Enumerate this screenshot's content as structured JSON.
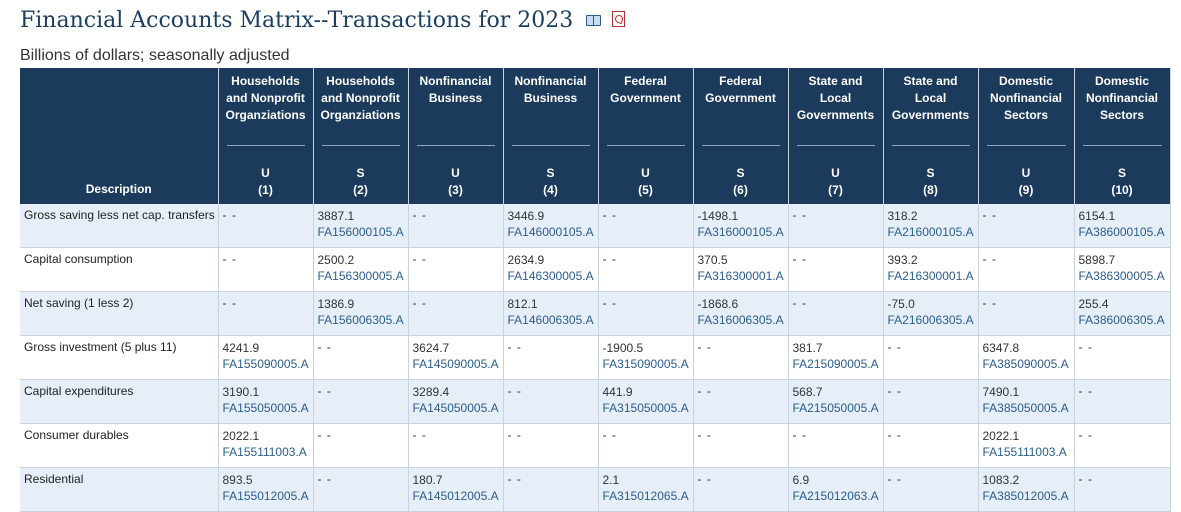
{
  "title": "Financial Accounts Matrix--Transactions for 2023",
  "subtitle": "Billions of dollars; seasonally adjusted",
  "icons": [
    "book-icon",
    "pdf-icon"
  ],
  "colors": {
    "header_bg": "#1b3a5c",
    "row_alt": "#e6eef7",
    "link": "#2a5d8f",
    "title": "#1b3f63"
  },
  "columns": [
    {
      "label": "Description"
    },
    {
      "name": "Households and Nonprofit Organziations",
      "type": "U",
      "num": "(1)"
    },
    {
      "name": "Households and Nonprofit Organziations",
      "type": "S",
      "num": "(2)"
    },
    {
      "name": "Nonfinancial Business",
      "type": "U",
      "num": "(3)"
    },
    {
      "name": "Nonfinancial Business",
      "type": "S",
      "num": "(4)"
    },
    {
      "name": "Federal Government",
      "type": "U",
      "num": "(5)"
    },
    {
      "name": "Federal Government",
      "type": "S",
      "num": "(6)"
    },
    {
      "name": "State and Local Governments",
      "type": "U",
      "num": "(7)"
    },
    {
      "name": "State and Local Governments",
      "type": "S",
      "num": "(8)"
    },
    {
      "name": "Domestic Nonfinancial Sectors",
      "type": "U",
      "num": "(9)"
    },
    {
      "name": "Domestic Nonfinancial Sectors",
      "type": "S",
      "num": "(10)"
    }
  ],
  "rows": [
    {
      "description": "Gross saving less net cap. transfers",
      "cells": [
        null,
        {
          "value": "3887.1",
          "code": "FA156000105.A"
        },
        null,
        {
          "value": "3446.9",
          "code": "FA146000105.A"
        },
        null,
        {
          "value": "-1498.1",
          "code": "FA316000105.A"
        },
        null,
        {
          "value": "318.2",
          "code": "FA216000105.A"
        },
        null,
        {
          "value": "6154.1",
          "code": "FA386000105.A"
        }
      ]
    },
    {
      "description": "Capital consumption",
      "cells": [
        null,
        {
          "value": "2500.2",
          "code": "FA156300005.A"
        },
        null,
        {
          "value": "2634.9",
          "code": "FA146300005.A"
        },
        null,
        {
          "value": "370.5",
          "code": "FA316300001.A"
        },
        null,
        {
          "value": "393.2",
          "code": "FA216300001.A"
        },
        null,
        {
          "value": "5898.7",
          "code": "FA386300005.A"
        }
      ]
    },
    {
      "description": "Net saving (1 less 2)",
      "cells": [
        null,
        {
          "value": "1386.9",
          "code": "FA156006305.A"
        },
        null,
        {
          "value": "812.1",
          "code": "FA146006305.A"
        },
        null,
        {
          "value": "-1868.6",
          "code": "FA316006305.A"
        },
        null,
        {
          "value": "-75.0",
          "code": "FA216006305.A"
        },
        null,
        {
          "value": "255.4",
          "code": "FA386006305.A"
        }
      ]
    },
    {
      "description": "Gross investment (5 plus 11)",
      "cells": [
        {
          "value": "4241.9",
          "code": "FA155090005.A"
        },
        null,
        {
          "value": "3624.7",
          "code": "FA145090005.A"
        },
        null,
        {
          "value": "-1900.5",
          "code": "FA315090005.A"
        },
        null,
        {
          "value": "381.7",
          "code": "FA215090005.A"
        },
        null,
        {
          "value": "6347.8",
          "code": "FA385090005.A"
        },
        null
      ]
    },
    {
      "description": "Capital expenditures",
      "cells": [
        {
          "value": "3190.1",
          "code": "FA155050005.A"
        },
        null,
        {
          "value": "3289.4",
          "code": "FA145050005.A"
        },
        null,
        {
          "value": "441.9",
          "code": "FA315050005.A"
        },
        null,
        {
          "value": "568.7",
          "code": "FA215050005.A"
        },
        null,
        {
          "value": "7490.1",
          "code": "FA385050005.A"
        },
        null
      ]
    },
    {
      "description": "Consumer durables",
      "cells": [
        {
          "value": "2022.1",
          "code": "FA155111003.A"
        },
        null,
        null,
        null,
        null,
        null,
        null,
        null,
        {
          "value": "2022.1",
          "code": "FA155111003.A"
        },
        null
      ]
    },
    {
      "description": "Residential",
      "cells": [
        {
          "value": "893.5",
          "code": "FA155012005.A"
        },
        null,
        {
          "value": "180.7",
          "code": "FA145012005.A"
        },
        null,
        {
          "value": "2.1",
          "code": "FA315012065.A"
        },
        null,
        {
          "value": "6.9",
          "code": "FA215012063.A"
        },
        null,
        {
          "value": "1083.2",
          "code": "FA385012005.A"
        },
        null
      ]
    }
  ],
  "empty_marker": "- -"
}
